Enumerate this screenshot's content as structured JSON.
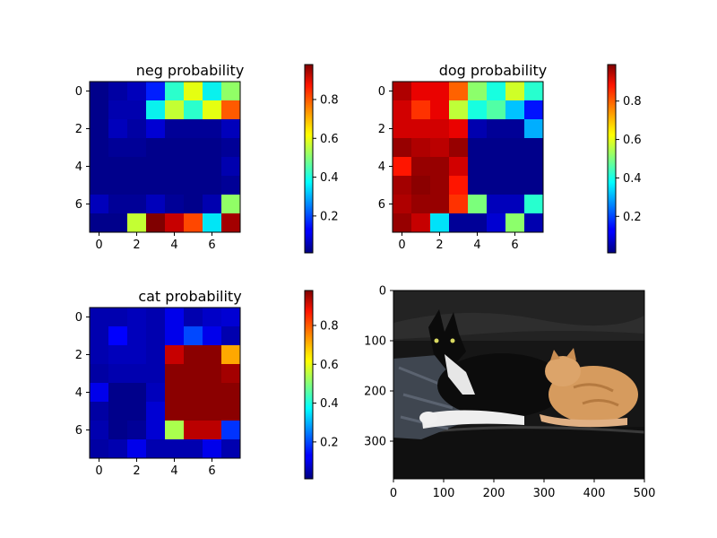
{
  "chart_data": [
    {
      "type": "heatmap",
      "title": "neg probability",
      "x_ticks": [
        "0",
        "2",
        "4",
        "6"
      ],
      "y_ticks": [
        "0",
        "2",
        "4",
        "6"
      ],
      "colorbar_ticks": [
        "0.2",
        "0.4",
        "0.6",
        "0.8"
      ],
      "colorbar_range": [
        0.01,
        0.98
      ],
      "colormap": "jet",
      "values": [
        [
          0.02,
          0.04,
          0.06,
          0.16,
          0.4,
          0.62,
          0.36,
          0.52
        ],
        [
          0.02,
          0.05,
          0.05,
          0.36,
          0.58,
          0.4,
          0.62,
          0.8
        ],
        [
          0.02,
          0.06,
          0.04,
          0.08,
          0.03,
          0.03,
          0.03,
          0.06
        ],
        [
          0.02,
          0.03,
          0.03,
          0.02,
          0.02,
          0.02,
          0.02,
          0.03
        ],
        [
          0.02,
          0.02,
          0.02,
          0.02,
          0.02,
          0.02,
          0.02,
          0.05
        ],
        [
          0.02,
          0.02,
          0.02,
          0.02,
          0.02,
          0.02,
          0.02,
          0.03
        ],
        [
          0.06,
          0.03,
          0.03,
          0.06,
          0.03,
          0.02,
          0.05,
          0.52
        ],
        [
          0.02,
          0.02,
          0.58,
          0.98,
          0.92,
          0.82,
          0.35,
          0.95
        ]
      ]
    },
    {
      "type": "heatmap",
      "title": "dog probability",
      "x_ticks": [
        "0",
        "2",
        "4",
        "6"
      ],
      "y_ticks": [
        "0",
        "2",
        "4",
        "6"
      ],
      "colorbar_ticks": [
        "0.2",
        "0.4",
        "0.6",
        "0.8"
      ],
      "colorbar_range": [
        0.01,
        0.99
      ],
      "colormap": "jet",
      "values": [
        [
          0.95,
          0.9,
          0.9,
          0.8,
          0.52,
          0.38,
          0.6,
          0.4
        ],
        [
          0.92,
          0.85,
          0.9,
          0.58,
          0.38,
          0.45,
          0.32,
          0.15
        ],
        [
          0.92,
          0.92,
          0.92,
          0.9,
          0.05,
          0.03,
          0.03,
          0.3
        ],
        [
          0.97,
          0.95,
          0.94,
          0.97,
          0.02,
          0.02,
          0.02,
          0.02
        ],
        [
          0.88,
          0.97,
          0.97,
          0.92,
          0.02,
          0.02,
          0.02,
          0.02
        ],
        [
          0.96,
          0.98,
          0.97,
          0.88,
          0.02,
          0.02,
          0.02,
          0.02
        ],
        [
          0.95,
          0.97,
          0.97,
          0.85,
          0.5,
          0.06,
          0.06,
          0.4
        ],
        [
          0.97,
          0.93,
          0.35,
          0.03,
          0.03,
          0.08,
          0.52,
          0.05
        ]
      ]
    },
    {
      "type": "heatmap",
      "title": "cat probability",
      "x_ticks": [
        "0",
        "2",
        "4",
        "6"
      ],
      "y_ticks": [
        "0",
        "2",
        "4",
        "6"
      ],
      "colorbar_ticks": [
        "0.2",
        "0.4",
        "0.6",
        "0.8"
      ],
      "colorbar_range": [
        0.01,
        0.98
      ],
      "colormap": "jet",
      "values": [
        [
          0.05,
          0.05,
          0.06,
          0.05,
          0.1,
          0.05,
          0.07,
          0.08
        ],
        [
          0.05,
          0.12,
          0.06,
          0.05,
          0.1,
          0.2,
          0.1,
          0.05
        ],
        [
          0.05,
          0.06,
          0.06,
          0.05,
          0.92,
          0.97,
          0.97,
          0.72
        ],
        [
          0.04,
          0.05,
          0.05,
          0.05,
          0.97,
          0.97,
          0.97,
          0.95
        ],
        [
          0.1,
          0.02,
          0.02,
          0.06,
          0.97,
          0.97,
          0.97,
          0.97
        ],
        [
          0.04,
          0.02,
          0.02,
          0.08,
          0.97,
          0.97,
          0.97,
          0.97
        ],
        [
          0.05,
          0.02,
          0.03,
          0.08,
          0.55,
          0.93,
          0.93,
          0.18
        ],
        [
          0.04,
          0.05,
          0.1,
          0.05,
          0.05,
          0.05,
          0.1,
          0.05
        ]
      ]
    },
    {
      "type": "image",
      "x_ticks": [
        "0",
        "100",
        "200",
        "300",
        "400",
        "500"
      ],
      "y_ticks": [
        "0",
        "100",
        "200",
        "300"
      ],
      "xlim": [
        0,
        500
      ],
      "ylim": [
        375,
        0
      ]
    }
  ]
}
